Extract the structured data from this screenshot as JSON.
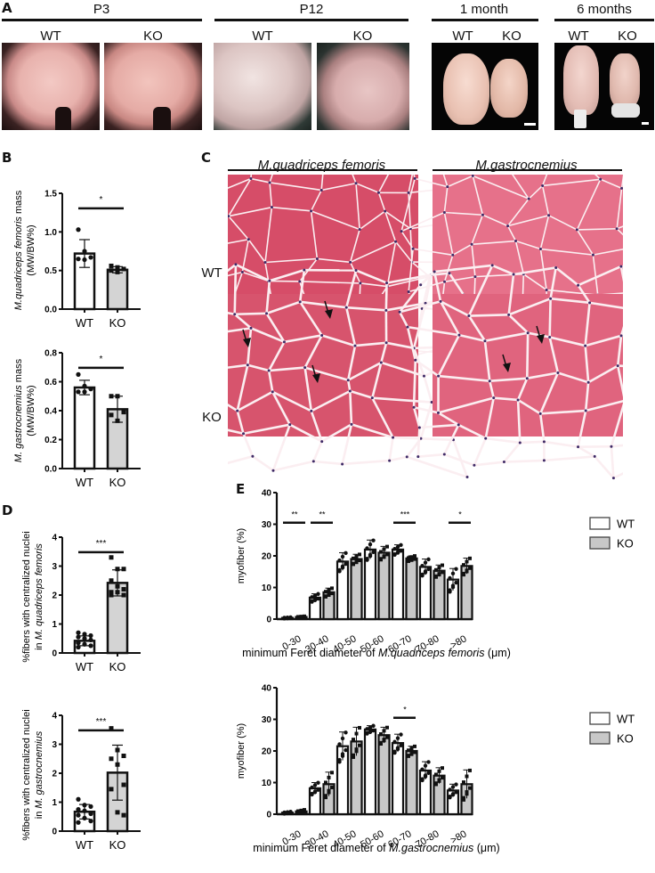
{
  "panels": {
    "A": {
      "letter": "A",
      "groups": [
        {
          "title": "P3",
          "labels": [
            "WT",
            "KO"
          ]
        },
        {
          "title": "P12",
          "labels": [
            "WT",
            "KO"
          ]
        },
        {
          "title": "1 month",
          "labels": [
            "WT",
            "KO"
          ]
        },
        {
          "title": "6 months",
          "labels": [
            "WT",
            "KO"
          ]
        }
      ]
    },
    "B": {
      "letter": "B"
    },
    "C": {
      "letter": "C",
      "columns": [
        "M.quadriceps femoris",
        "M.gastrocnemius"
      ],
      "rows": [
        "WT",
        "KO"
      ]
    },
    "D": {
      "letter": "D"
    },
    "E": {
      "letter": "E"
    }
  },
  "colors": {
    "wt_fill": "#ffffff",
    "ko_fill": "#c8c8c8",
    "bar_stroke": "#111111",
    "he_stain": "#d9566f"
  },
  "chart_data": [
    {
      "id": "B1",
      "type": "bar",
      "categories": [
        "WT",
        "KO"
      ],
      "values": [
        0.72,
        0.51
      ],
      "errors": [
        0.18,
        0.04
      ],
      "ylabel": "M.quadriceps femoris mass (MW/BW%)",
      "ylabel_italic": "M.quadriceps femoris",
      "ylabel_rest": " mass",
      "ylabel2": "(MW/BW%)",
      "ylim": [
        0,
        1.5
      ],
      "yticks": [
        "0.0",
        "0.5",
        "1.0",
        "1.5"
      ],
      "points": [
        [
          1.03,
          0.75,
          0.67,
          0.65,
          0.64
        ],
        [
          0.56,
          0.54,
          0.52,
          0.5,
          0.48
        ]
      ],
      "significance": "*"
    },
    {
      "id": "B2",
      "type": "bar",
      "categories": [
        "WT",
        "KO"
      ],
      "values": [
        0.56,
        0.41
      ],
      "errors": [
        0.05,
        0.09
      ],
      "ylabel": "M. gastrocnemius mass (MW/BW%)",
      "ylabel_italic": "M. gastrocnemius",
      "ylabel_rest": " mass",
      "ylabel2": "(MW/BW%)",
      "ylim": [
        0,
        0.8
      ],
      "yticks": [
        "0.0",
        "0.2",
        "0.4",
        "0.6",
        "0.8"
      ],
      "points": [
        [
          0.65,
          0.57,
          0.55,
          0.53,
          0.53
        ],
        [
          0.5,
          0.5,
          0.39,
          0.37,
          0.33
        ]
      ],
      "significance": "*"
    },
    {
      "id": "D1",
      "type": "bar",
      "categories": [
        "WT",
        "KO"
      ],
      "values": [
        0.42,
        2.42
      ],
      "errors": [
        0.17,
        0.45
      ],
      "ylabel": "%fibers with centralized nuclei",
      "ylabel2_prefix": "in ",
      "ylabel2_italic": "M. quadriceps femoris",
      "ylim": [
        0,
        4
      ],
      "yticks": [
        "0",
        "1",
        "2",
        "3",
        "4"
      ],
      "points": [
        [
          0.7,
          0.65,
          0.6,
          0.55,
          0.5,
          0.45,
          0.35,
          0.3,
          0.25,
          0.2
        ],
        [
          3.3,
          2.9,
          2.9,
          2.5,
          2.3,
          2.2,
          2.1,
          2.1,
          2.0,
          2.0
        ]
      ],
      "significance": "***"
    },
    {
      "id": "D2",
      "type": "bar",
      "categories": [
        "WT",
        "KO"
      ],
      "values": [
        0.67,
        2.02
      ],
      "errors": [
        0.25,
        0.95
      ],
      "ylabel": "%fibers with centralized nuclei",
      "ylabel2_prefix": "in ",
      "ylabel2_italic": "M. gastrocnemius",
      "ylim": [
        0,
        4
      ],
      "yticks": [
        "0",
        "1",
        "2",
        "3",
        "4"
      ],
      "points": [
        [
          1.1,
          0.9,
          0.85,
          0.75,
          0.7,
          0.6,
          0.55,
          0.45,
          0.35,
          0.3
        ],
        [
          3.55,
          2.8,
          2.6,
          2.5,
          2.3,
          1.6,
          1.45,
          0.65,
          0.55
        ]
      ],
      "significance": "***"
    },
    {
      "id": "E1",
      "type": "bar",
      "title": "",
      "categories": [
        "0-30",
        "30-40",
        "40-50",
        "50-60",
        "60-70",
        "70-80",
        ">80"
      ],
      "series": [
        {
          "name": "WT",
          "values": [
            0.4,
            6.8,
            18.2,
            22.0,
            22.0,
            16.5,
            12.5
          ],
          "errors": [
            0.2,
            1.2,
            2.8,
            3.0,
            1.5,
            2.5,
            3.5
          ]
        },
        {
          "name": "KO",
          "values": [
            0.7,
            8.5,
            19.0,
            21.0,
            19.2,
            15.3,
            16.8
          ],
          "errors": [
            0.2,
            1.3,
            1.5,
            2.0,
            0.8,
            1.8,
            2.5
          ]
        }
      ],
      "xlabel_prefix": "minimum Feret diameter of ",
      "xlabel_italic": "M.quadriceps femoris",
      "xlabel_suffix": " (μm)",
      "ylabel": "myofiber (%)",
      "ylim": [
        0,
        40
      ],
      "yticks": [
        "0",
        "10",
        "20",
        "30",
        "40"
      ],
      "significance": [
        {
          "category": "0-30",
          "label": "**"
        },
        {
          "category": "30-40",
          "label": "**"
        },
        {
          "category": "60-70",
          "label": "***"
        },
        {
          "category": ">80",
          "label": "*"
        }
      ],
      "legend": [
        "WT",
        "KO"
      ],
      "legend_position": "right"
    },
    {
      "id": "E2",
      "type": "bar",
      "categories": [
        "0-30",
        "30-40",
        "40-50",
        "50-60",
        "60-70",
        "70-80",
        ">80"
      ],
      "series": [
        {
          "name": "WT",
          "values": [
            0.5,
            8.2,
            21.5,
            26.8,
            22.5,
            13.8,
            7.5
          ],
          "errors": [
            0.3,
            1.8,
            4.5,
            1.2,
            2.8,
            2.8,
            2.0
          ]
        },
        {
          "name": "KO",
          "values": [
            0.9,
            9.5,
            23.0,
            25.0,
            20.0,
            12.2,
            9.5
          ],
          "errors": [
            0.5,
            3.8,
            4.5,
            2.5,
            1.5,
            2.5,
            4.5
          ]
        }
      ],
      "xlabel_prefix": "minimum Feret diameter of ",
      "xlabel_italic": "M.gastrocnemius",
      "xlabel_suffix": " (μm)",
      "ylabel": "myofiber (%)",
      "ylim": [
        0,
        40
      ],
      "yticks": [
        "0",
        "10",
        "20",
        "30",
        "40"
      ],
      "significance": [
        {
          "category": "60-70",
          "label": "*"
        }
      ],
      "legend": [
        "WT",
        "KO"
      ],
      "legend_position": "right"
    }
  ]
}
